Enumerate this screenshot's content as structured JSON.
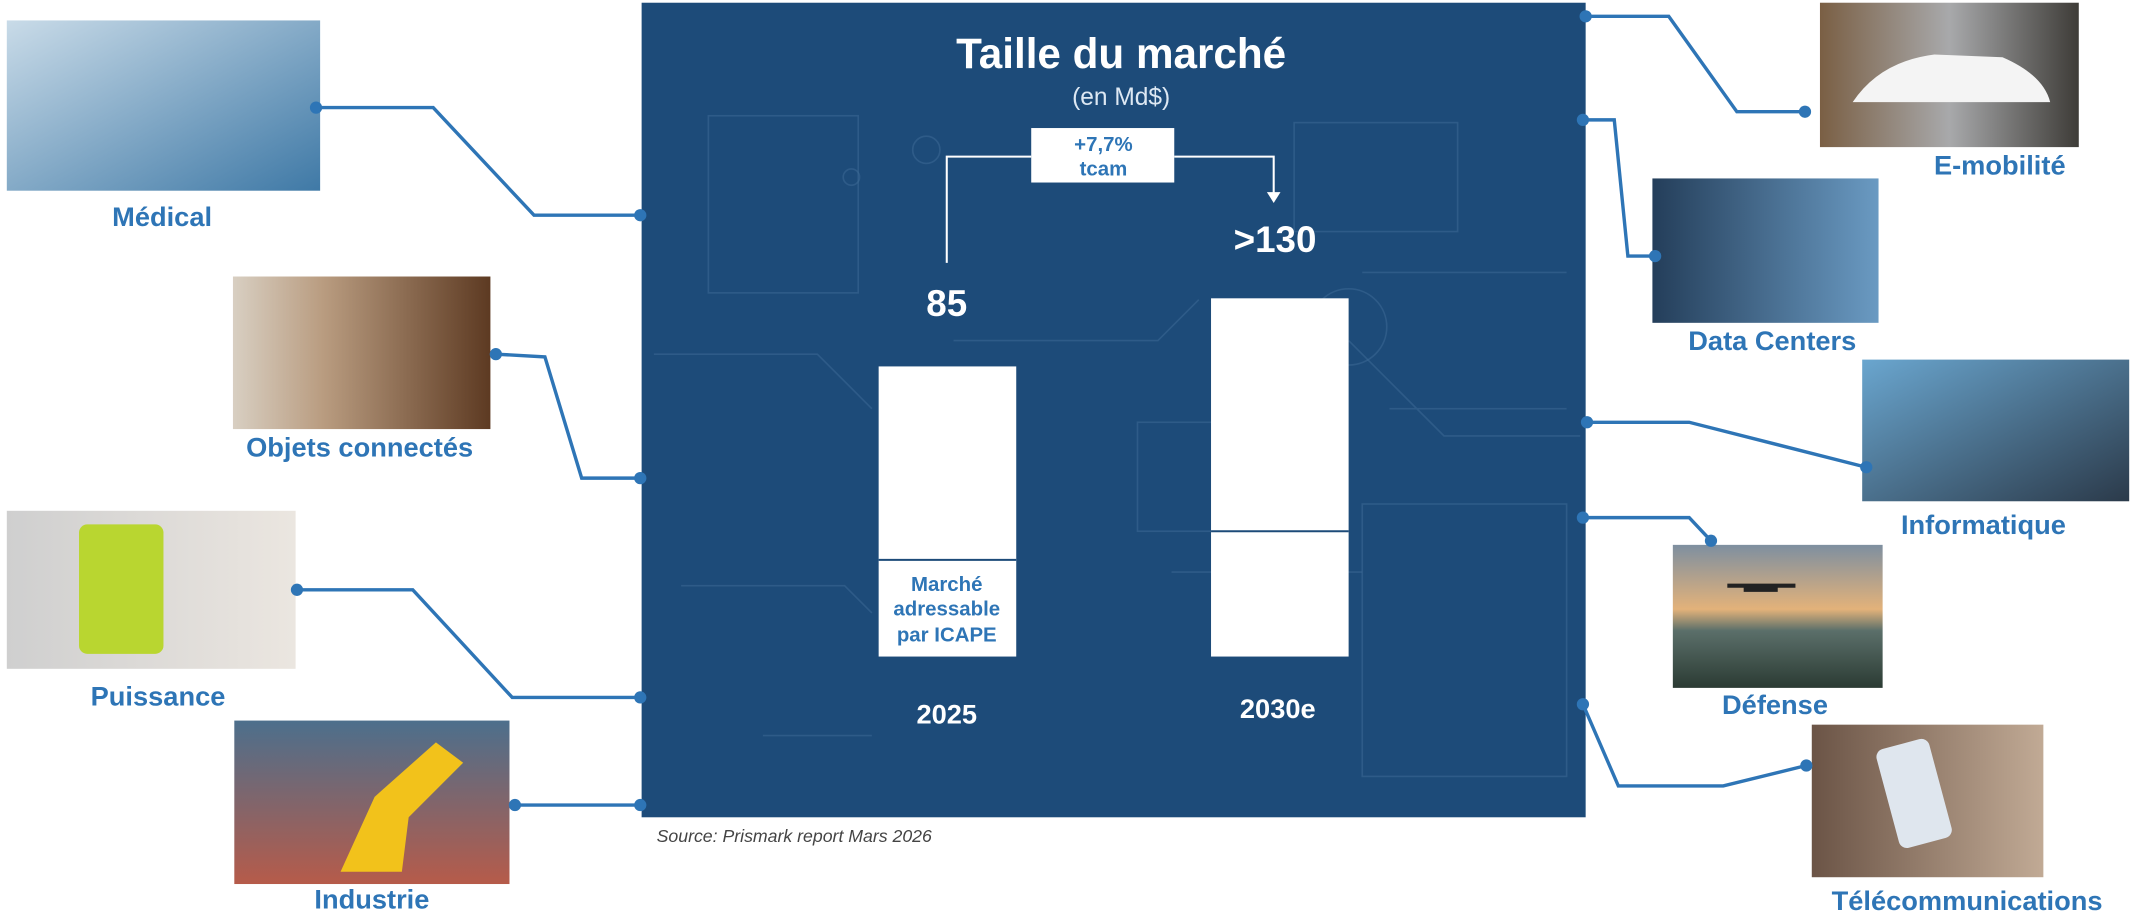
{
  "title": "Taille du marché",
  "subtitle": "(en Md$)",
  "growth": {
    "rate": "+7,7%",
    "label": "tcam"
  },
  "bars": [
    {
      "value": "85",
      "year": "2025",
      "segment": [
        "Marché",
        "adressable",
        "par ICAPE"
      ]
    },
    {
      "value": ">130",
      "year": "2030e"
    }
  ],
  "source": "Source: Prismark report Mars 2026",
  "sectors_left": [
    "Médical",
    "Objets connectés",
    "Puissance",
    "Industrie"
  ],
  "sectors_right": [
    "E-mobilité",
    "Data Centers",
    "Informatique",
    "Défense",
    "Télécommunications"
  ]
}
